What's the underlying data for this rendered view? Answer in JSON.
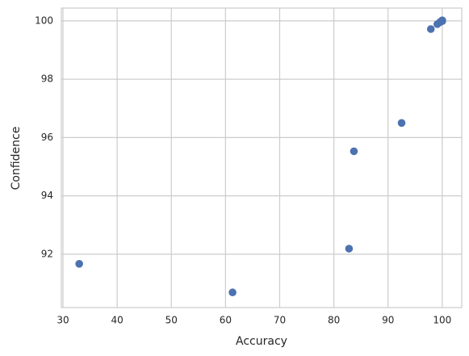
{
  "chart_data": {
    "type": "scatter",
    "x_label": "Accuracy",
    "y_label": "Confidence",
    "x": [
      33.0,
      61.3,
      82.8,
      83.7,
      92.5,
      97.9,
      99.1,
      99.6,
      100.0,
      100.0
    ],
    "series": [
      {
        "color": "#4c72b0",
        "values": [
          91.67,
          90.69,
          92.19,
          95.53,
          96.5,
          99.72,
          99.89,
          99.96,
          99.99,
          100.02
        ]
      }
    ],
    "xlim": [
      29.7,
      103.6
    ],
    "ylim": [
      90.17,
      100.44
    ],
    "xticks": [
      30,
      40,
      50,
      60,
      70,
      80,
      90,
      100
    ],
    "yticks": [
      92,
      94,
      96,
      98,
      100
    ],
    "grid": true
  }
}
